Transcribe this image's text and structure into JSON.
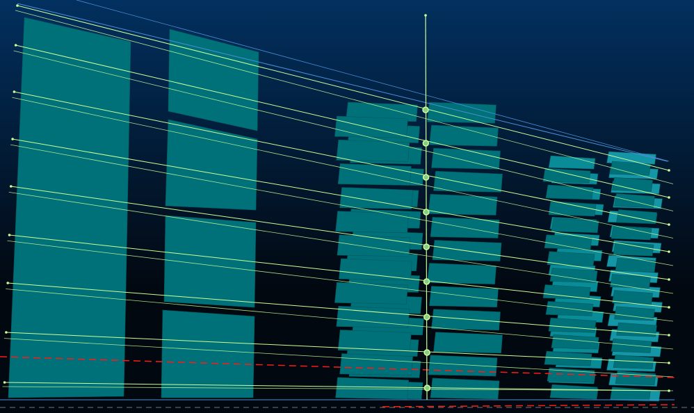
{
  "scene": {
    "background_top": "#02305f",
    "background_bottom": "#020810",
    "box_color": "#007178",
    "box_highlight": "#0a8c98",
    "box_bright": "#1596a6",
    "guide_line_color": "#ccff99",
    "bounding_line_color": "#4a8fd8",
    "axis_marker_color": "#ccff99",
    "red_dash_color": "#ff1a1a",
    "grey_dash_color": "#777777"
  },
  "icons": [
    "axis-marker-icon"
  ]
}
